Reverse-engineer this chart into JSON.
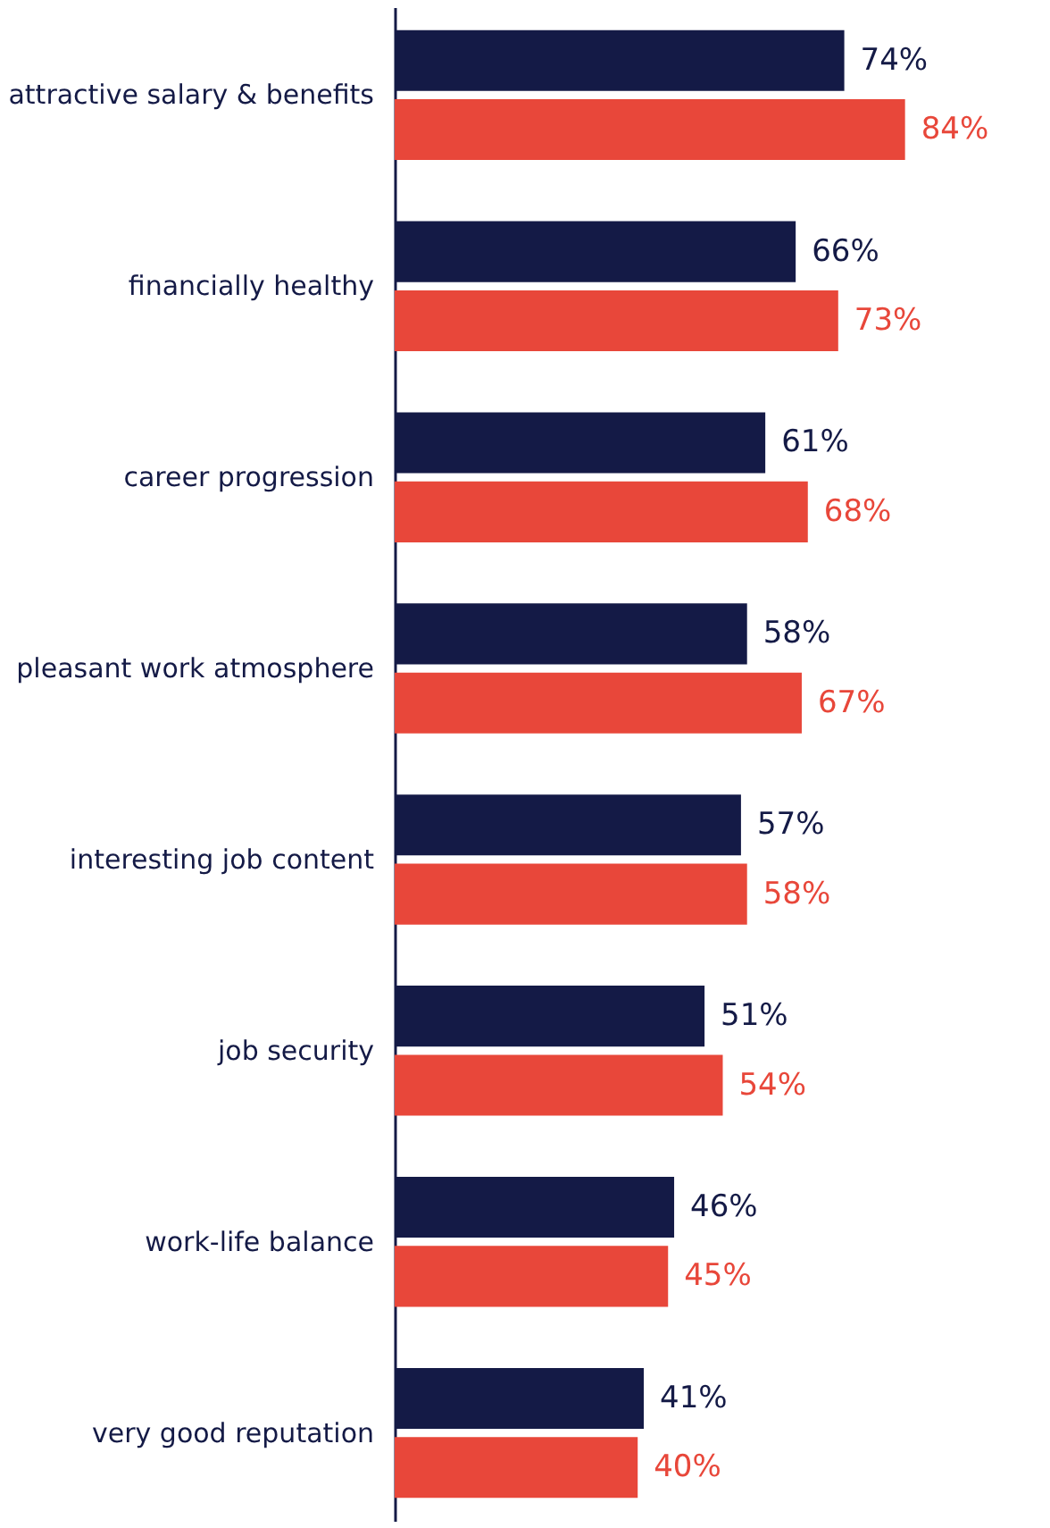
{
  "chart_data": {
    "type": "bar",
    "orientation": "horizontal",
    "data_labels": true,
    "tick_labels": "y",
    "categories": [
      "attractive salary & benefits",
      "financially healthy",
      "career progression",
      "pleasant work atmosphere",
      "interesting job content",
      "job security",
      "work-life balance",
      "very good reputation"
    ],
    "series": [
      {
        "color": "#141a46",
        "values": [
          74,
          66,
          61,
          58,
          57,
          51,
          46,
          41
        ],
        "value_labels": [
          "74%",
          "66%",
          "61%",
          "58%",
          "57%",
          "51%",
          "46%",
          "41%"
        ]
      },
      {
        "color": "#e8473a",
        "values": [
          84,
          73,
          68,
          67,
          58,
          54,
          45,
          40
        ],
        "value_labels": [
          "84%",
          "73%",
          "68%",
          "67%",
          "58%",
          "54%",
          "45%",
          "40%"
        ]
      }
    ]
  }
}
